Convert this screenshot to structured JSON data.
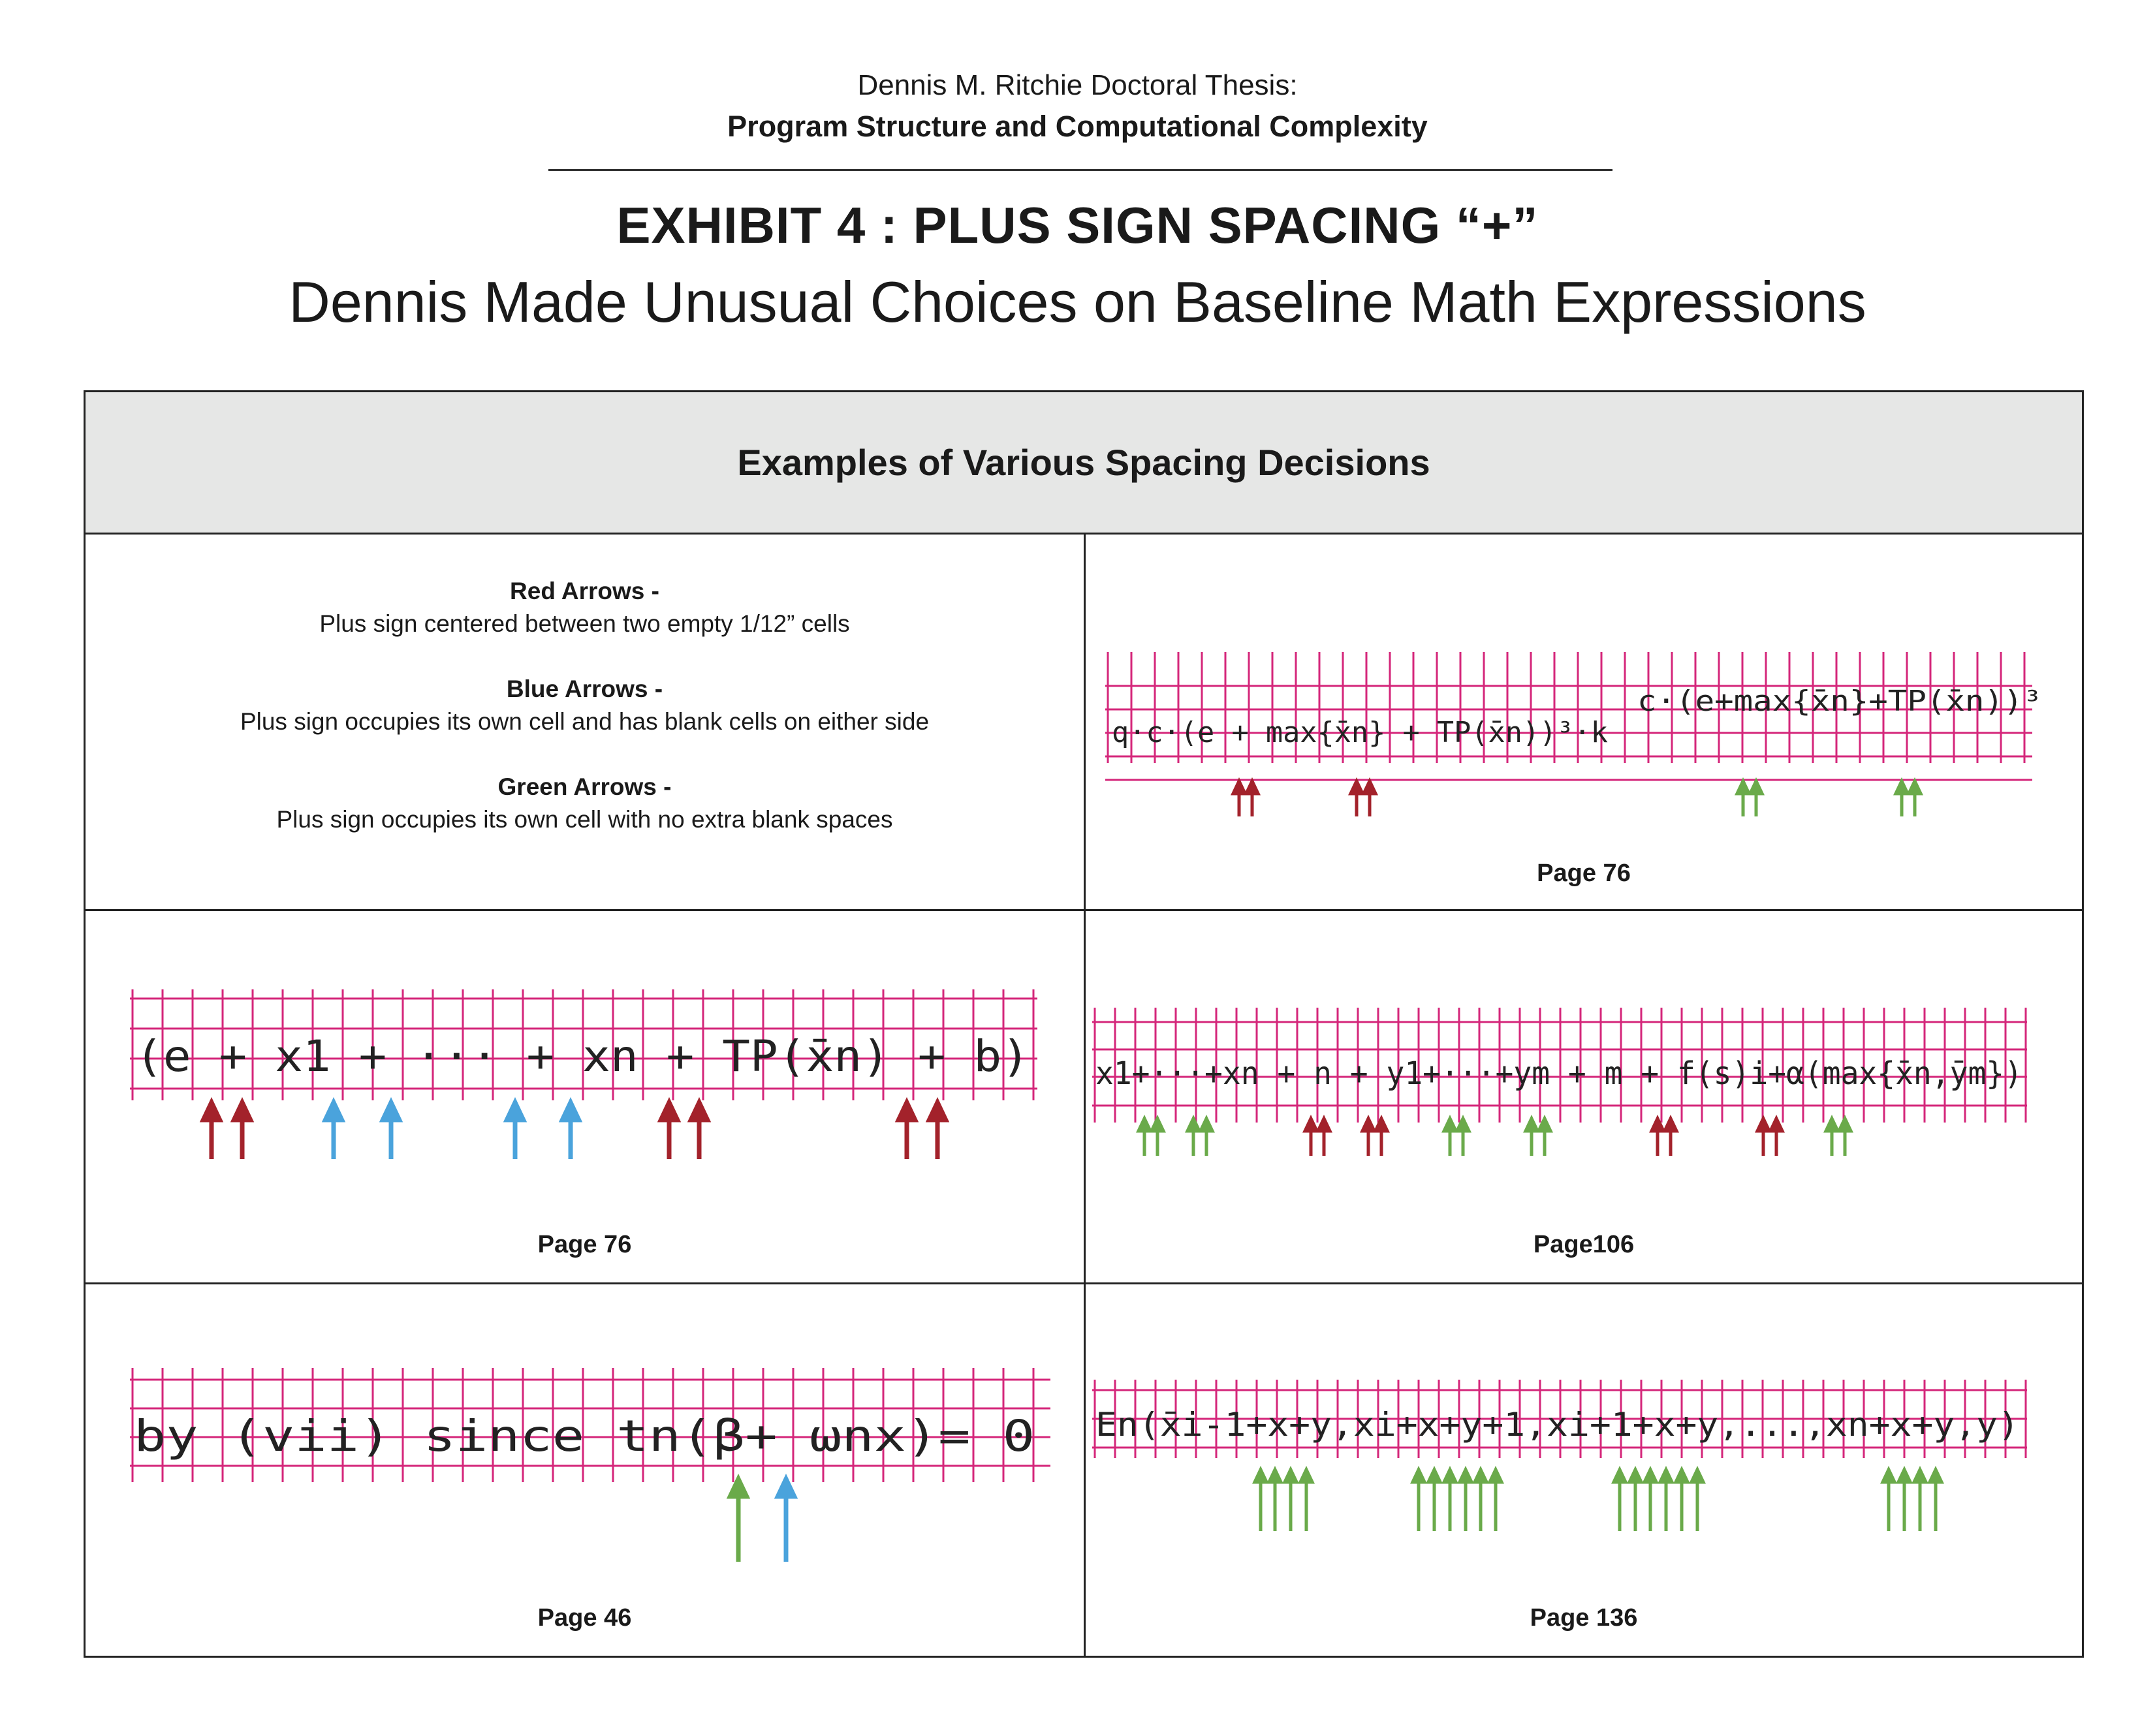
{
  "header": {
    "author_line": "Dennis M. Ritchie Doctoral Thesis:",
    "title_line": "Program Structure and Computational Complexity",
    "exhibit": "EXHIBIT 4  :  PLUS SIGN SPACING “+”",
    "subtitle": "Dennis Made Unusual Choices on Baseline Math Expressions"
  },
  "table": {
    "heading": "Examples of Various Spacing Decisions",
    "legend": [
      {
        "title": "Red Arrows -",
        "desc": "Plus sign centered between two empty 1/12” cells",
        "color": "#a3222b"
      },
      {
        "title": "Blue Arrows -",
        "desc": "Plus sign occupies its own cell and has blank cells on either side",
        "color": "#4aa3dc"
      },
      {
        "title": "Green Arrows -",
        "desc": "Plus sign occupies its own cell with no extra blank spaces",
        "color": "#6aaa4a"
      }
    ],
    "grid_color": "#d4267a",
    "examples": [
      {
        "caption": "Page 76",
        "line1": "q·c·(e + max{x̄n} + TP(x̄n))³·k",
        "line2": "c·(e+max{x̄n}+TP(x̄n))³"
      },
      {
        "caption": "Page 76",
        "expr": "(e + x1  +  ···  +  xn  + TP(x̄n) + b)"
      },
      {
        "caption": "Page106",
        "expr": "x1+···+xn + n + y1+···+ym + m + f(s)i+α(max{x̄n,ȳm})"
      },
      {
        "caption": "Page 46",
        "expr": "by (vii) since tn(β+ ωnx)= 0"
      },
      {
        "caption": "Page 136",
        "expr": "En(x̄i-1+x+y,xi+x+y+1,xi+1+x+y,...,xn+x+y,y)"
      }
    ]
  }
}
